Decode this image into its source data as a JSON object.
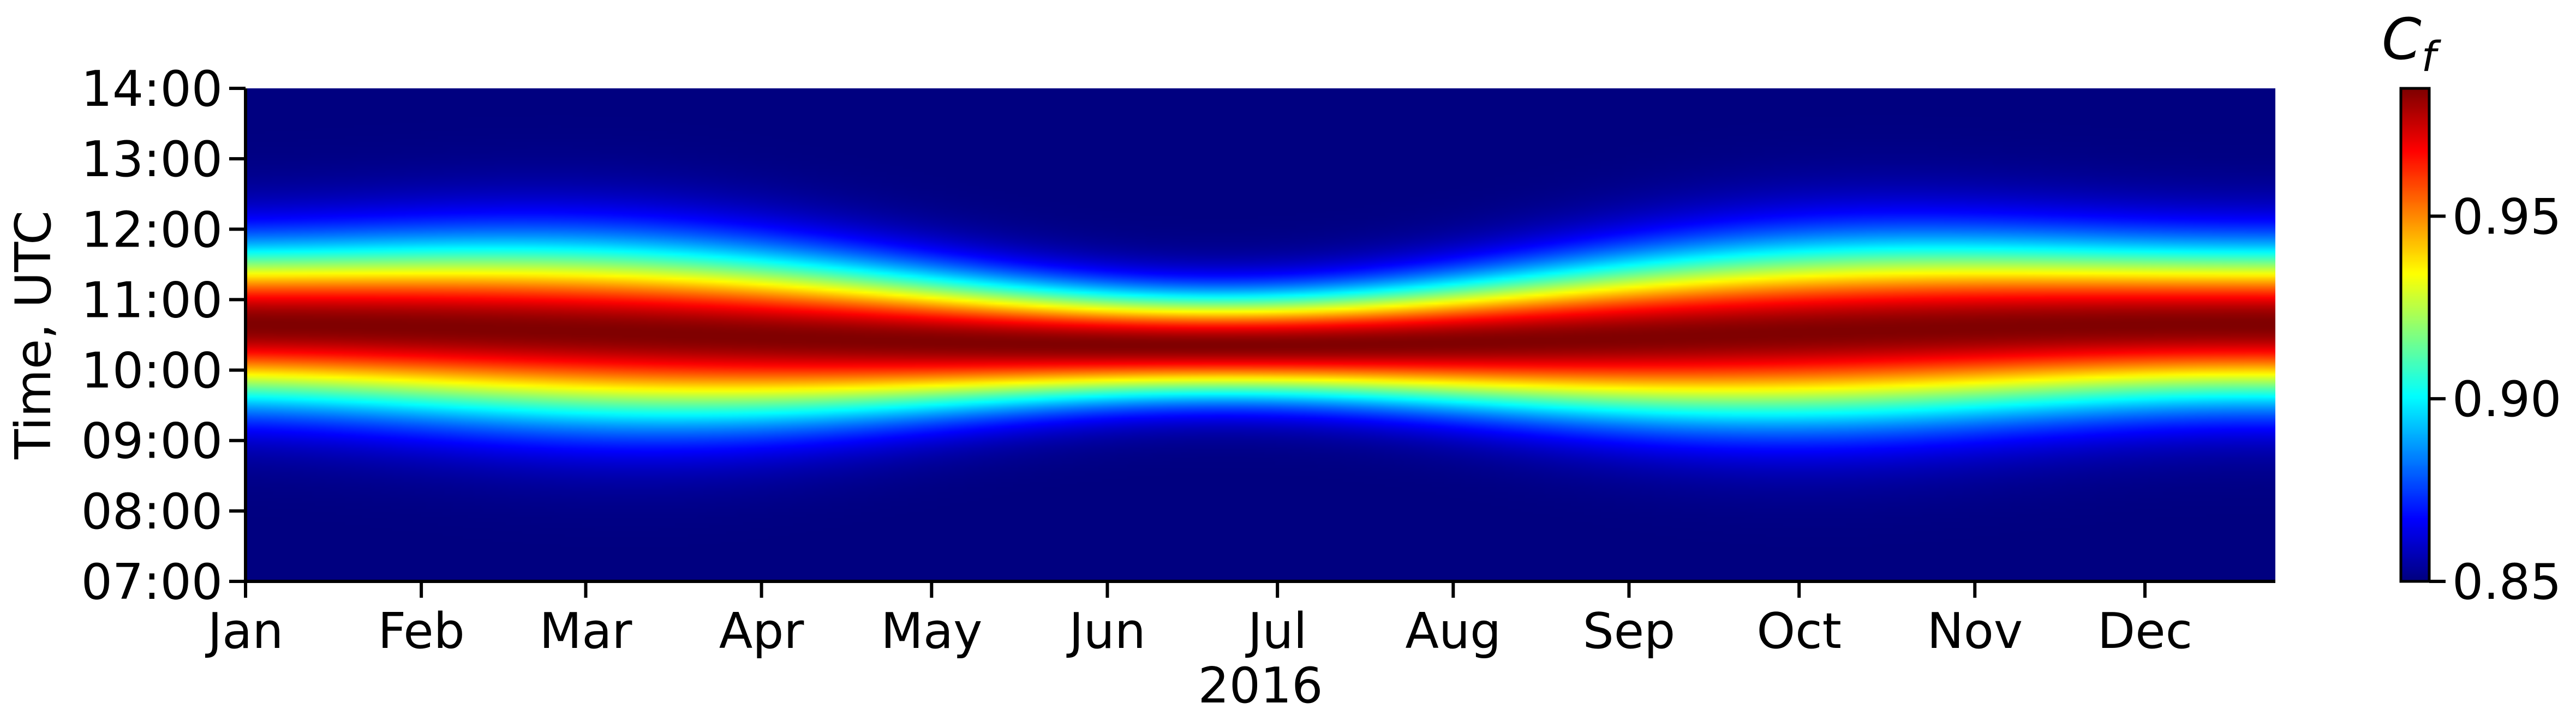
{
  "chart_data": {
    "type": "heatmap",
    "title": "",
    "xlabel": "2016",
    "ylabel": "Time, UTC",
    "x_tick_labels": [
      "Jan",
      "Feb",
      "Mar",
      "Apr",
      "May",
      "Jun",
      "Jul",
      "Aug",
      "Sep",
      "Oct",
      "Nov",
      "Dec"
    ],
    "x_range_days": [
      0,
      358
    ],
    "y_tick_labels": [
      "07:00",
      "08:00",
      "09:00",
      "10:00",
      "11:00",
      "12:00",
      "13:00",
      "14:00"
    ],
    "y_range_hours": [
      7,
      14
    ],
    "colorbar": {
      "label": "C_f",
      "label_main": "C",
      "label_sub": "f",
      "range": [
        0.85,
        0.985
      ],
      "ticks": [
        "0.85",
        "0.90",
        "0.95"
      ],
      "colormap": "jet"
    },
    "model": {
      "peak_value": 0.985,
      "min_value": 0.85,
      "peak_hour_min": 10.35,
      "peak_hour_max": 10.65,
      "peak_hour_phase_day": 170,
      "day_length_center_day": 172
    },
    "grid": false,
    "legend": "colorbar-right"
  }
}
